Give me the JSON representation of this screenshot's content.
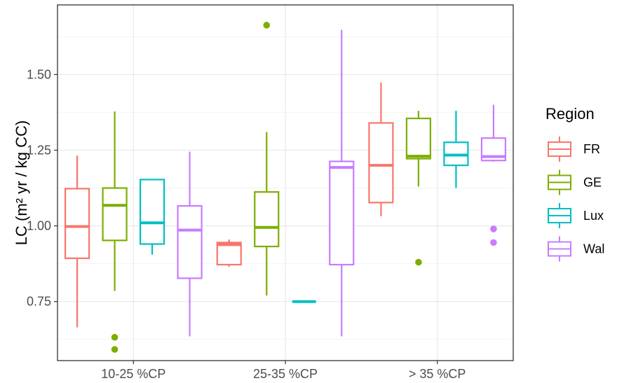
{
  "chart_data": {
    "type": "boxplot",
    "title": "",
    "xlabel": "",
    "ylabel": "LC (m² yr / kg CC)",
    "ylim": [
      0.555,
      1.73
    ],
    "yticks": [
      0.75,
      1.0,
      1.25,
      1.5
    ],
    "ytick_labels": [
      "0.75",
      "1.00",
      "1.25",
      "1.50"
    ],
    "categories": [
      "10-25 %CP",
      "25-35 %CP",
      "> 35 %CP"
    ],
    "grid": true,
    "legend": {
      "title": "Region",
      "placement": "right"
    },
    "series": [
      {
        "name": "FR",
        "color": "#F8766D",
        "boxes": [
          {
            "whisker_low": 0.665,
            "q1": 0.893,
            "median": 0.998,
            "q3": 1.123,
            "whisker_high": 1.232,
            "outliers": []
          },
          {
            "whisker_low": 0.865,
            "q1": 0.872,
            "median": 0.938,
            "q3": 0.945,
            "whisker_high": 0.955,
            "outliers": []
          },
          {
            "whisker_low": 1.032,
            "q1": 1.077,
            "median": 1.2,
            "q3": 1.34,
            "whisker_high": 1.474,
            "outliers": []
          }
        ]
      },
      {
        "name": "GE",
        "color": "#7CAE00",
        "boxes": [
          {
            "whisker_low": 0.785,
            "q1": 0.952,
            "median": 1.068,
            "q3": 1.125,
            "whisker_high": 1.378,
            "outliers": [
              0.632,
              0.592
            ]
          },
          {
            "whisker_low": 0.77,
            "q1": 0.932,
            "median": 0.995,
            "q3": 1.112,
            "whisker_high": 1.31,
            "outliers": [
              1.663
            ]
          },
          {
            "whisker_low": 1.13,
            "q1": 1.222,
            "median": 1.23,
            "q3": 1.355,
            "whisker_high": 1.38,
            "outliers": [
              0.88
            ]
          }
        ]
      },
      {
        "name": "Lux",
        "color": "#00BFC4",
        "boxes": [
          {
            "whisker_low": 0.905,
            "q1": 0.94,
            "median": 1.01,
            "q3": 1.153,
            "whisker_high": 1.153,
            "outliers": []
          },
          {
            "whisker_low": 0.75,
            "q1": 0.75,
            "median": 0.75,
            "q3": 0.75,
            "whisker_high": 0.75,
            "outliers": []
          },
          {
            "whisker_low": 1.125,
            "q1": 1.2,
            "median": 1.234,
            "q3": 1.276,
            "whisker_high": 1.38,
            "outliers": []
          }
        ]
      },
      {
        "name": "Wal",
        "color": "#C77CFF",
        "boxes": [
          {
            "whisker_low": 0.635,
            "q1": 0.827,
            "median": 0.986,
            "q3": 1.066,
            "whisker_high": 1.245,
            "outliers": []
          },
          {
            "whisker_low": 0.635,
            "q1": 0.872,
            "median": 1.193,
            "q3": 1.213,
            "whisker_high": 1.648,
            "outliers": []
          },
          {
            "whisker_low": 1.212,
            "q1": 1.216,
            "median": 1.229,
            "q3": 1.29,
            "whisker_high": 1.4,
            "outliers": [
              0.99,
              0.945
            ]
          }
        ]
      }
    ]
  }
}
